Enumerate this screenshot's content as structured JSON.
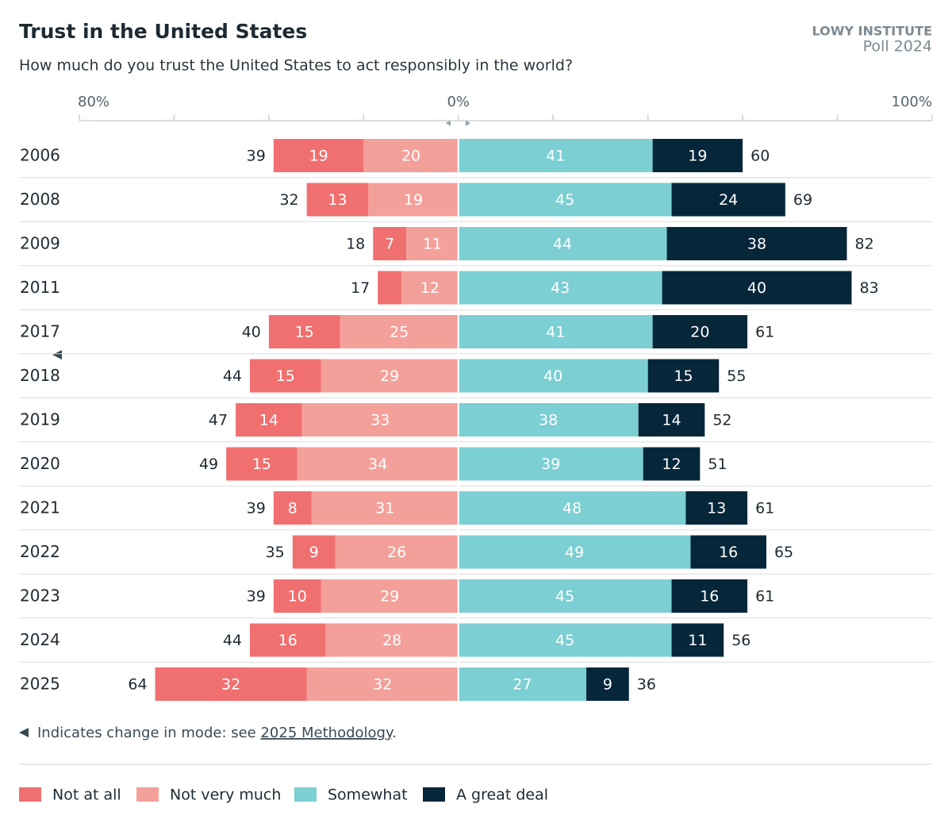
{
  "chart_data": {
    "type": "diverging-bar",
    "title": "Trust in the United States",
    "subtitle": "How much do you trust the United States to act responsibly in the world?",
    "brand": "LOWY INSTITUTE",
    "brand_sub": "Poll 2024",
    "categories": [
      "2006",
      "2008",
      "2009",
      "2011",
      "2017",
      "2018",
      "2019",
      "2020",
      "2021",
      "2022",
      "2023",
      "2024",
      "2025"
    ],
    "series": [
      {
        "name": "Not at all",
        "color": "#f07070",
        "side": "left",
        "values": [
          19,
          13,
          7,
          5,
          15,
          15,
          14,
          15,
          8,
          9,
          10,
          16,
          32
        ]
      },
      {
        "name": "Not very much",
        "color": "#f4a09a",
        "side": "left",
        "values": [
          20,
          19,
          11,
          12,
          25,
          29,
          33,
          34,
          31,
          26,
          29,
          28,
          32
        ]
      },
      {
        "name": "Somewhat",
        "color": "#7ccfd2",
        "side": "right",
        "values": [
          41,
          45,
          44,
          43,
          41,
          40,
          38,
          39,
          48,
          49,
          45,
          45,
          27
        ]
      },
      {
        "name": "A great deal",
        "color": "#06263a",
        "side": "right",
        "values": [
          19,
          24,
          38,
          40,
          20,
          15,
          14,
          12,
          13,
          16,
          16,
          11,
          9
        ]
      }
    ],
    "left_totals": [
      39,
      32,
      18,
      17,
      40,
      44,
      47,
      49,
      39,
      35,
      39,
      44,
      64
    ],
    "right_totals": [
      60,
      69,
      82,
      83,
      61,
      55,
      52,
      51,
      61,
      65,
      61,
      56,
      36
    ],
    "xlim": [
      -80,
      100
    ],
    "xticks": [
      {
        "value": -80,
        "label": "80%"
      },
      {
        "value": 0,
        "label": "0%"
      },
      {
        "value": 100,
        "label": "100%"
      }
    ],
    "xminor_ticks": [
      -60,
      -40,
      -20,
      20,
      40,
      60,
      80
    ],
    "note": "Indicates change in mode: see ",
    "note_link": "2025 Methodology",
    "note_end": "."
  }
}
